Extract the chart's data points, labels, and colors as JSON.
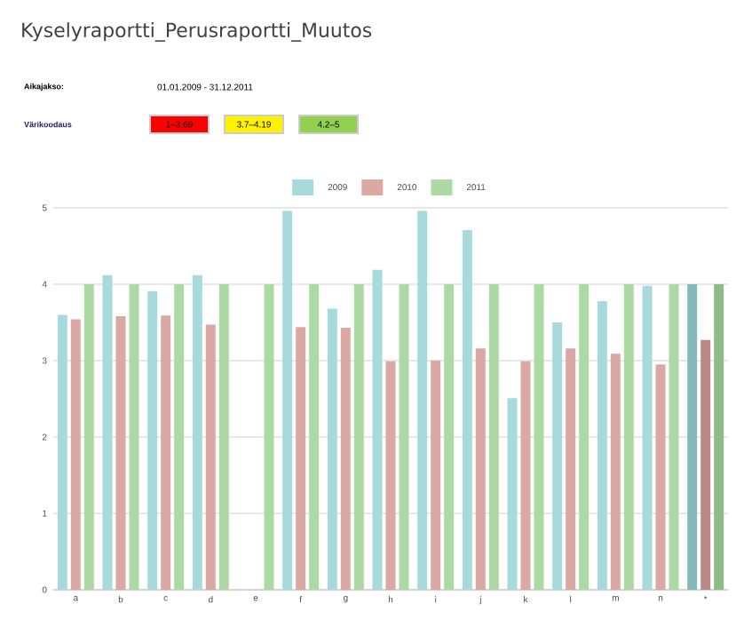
{
  "chart_data": {
    "type": "bar",
    "title": "Kyselyraportti_Perusraportti_Muutos",
    "annotations": [
      "Aikajakso:",
      "01.01.2009 - 31.12.2011",
      "Värikoodaus",
      "1–3.69",
      "3.7–4.19",
      "4.2–5"
    ],
    "categories": [
      "a",
      "b",
      "c",
      "d",
      "e",
      "f",
      "g",
      "h",
      "i",
      "j",
      "k",
      "l",
      "m",
      "n",
      "*"
    ],
    "series": [
      {
        "name": "2009",
        "color": "#a8dadc",
        "colors": [
          "#a8dadc",
          "#a8dadc",
          "#a8dadc",
          "#a8dadc",
          "#a8dadc",
          "#a8dadc",
          "#a8dadc",
          "#a8dadc",
          "#a8dadc",
          "#a8dadc",
          "#a8dadc",
          "#a8dadc",
          "#a8dadc",
          "#a8dadc",
          "#84bab9"
        ],
        "values": [
          3.6,
          4.12,
          3.91,
          4.12,
          0,
          4.96,
          3.68,
          4.19,
          4.96,
          4.71,
          2.51,
          3.5,
          3.78,
          3.98,
          4.0
        ]
      },
      {
        "name": "2010",
        "color": "#dba9a3",
        "colors": [
          "#dba9a3",
          "#dba9a3",
          "#dba9a3",
          "#dba9a3",
          "#dba9a3",
          "#dba9a3",
          "#dba9a3",
          "#dba9a3",
          "#dba9a3",
          "#dba9a3",
          "#dba9a3",
          "#dba9a3",
          "#dba9a3",
          "#dba9a3",
          "#b98984"
        ],
        "values": [
          3.54,
          3.58,
          3.59,
          3.47,
          0,
          3.44,
          3.43,
          2.99,
          3.0,
          3.16,
          2.99,
          3.16,
          3.09,
          2.95,
          3.27
        ]
      },
      {
        "name": "2011",
        "color": "#acd9a4",
        "colors": [
          "#acd9a4",
          "#acd9a4",
          "#acd9a4",
          "#acd9a4",
          "#acd9a4",
          "#acd9a4",
          "#acd9a4",
          "#acd9a4",
          "#acd9a4",
          "#acd9a4",
          "#acd9a4",
          "#acd9a4",
          "#acd9a4",
          "#acd9a4",
          "#8fbc86"
        ],
        "values": [
          4,
          4,
          4,
          4,
          4,
          4,
          4,
          4,
          4,
          4,
          4,
          4,
          4,
          4,
          4
        ]
      }
    ],
    "ylim": [
      0,
      5
    ],
    "yticks": [
      0,
      1,
      2,
      3,
      4,
      5
    ],
    "grid": "y",
    "legend": "top"
  }
}
